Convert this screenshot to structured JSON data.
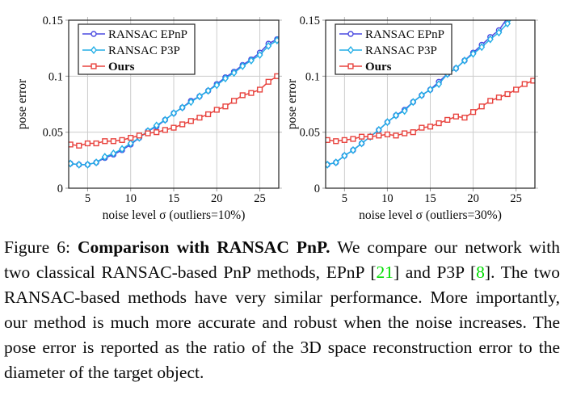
{
  "figure": {
    "caption": {
      "segments": [
        {
          "text": "Figure 6: ",
          "style": "normal"
        },
        {
          "text": "Comparison with RANSAC PnP.",
          "style": "bold"
        },
        {
          "text": " We compare our network with two classical RANSAC-based PnP methods, EPnP [",
          "style": "normal"
        },
        {
          "text": "21",
          "style": "cite"
        },
        {
          "text": "] and P3P [",
          "style": "normal"
        },
        {
          "text": "8",
          "style": "cite"
        },
        {
          "text": "]. The two RANSAC-based methods have very similar performance. More importantly, our method is much more accurate and robust when the noise increases. The pose error is reported as the ratio of the 3D space reconstruction error to the diameter of the target object.",
          "style": "normal"
        }
      ]
    },
    "colors": {
      "epnp_blue": "#4a4ae0",
      "p3p_cyan": "#23aee6",
      "ours_red": "#e8433e",
      "grid_gray": "#cccccc",
      "axis_border": "#222222",
      "citation_green": "#00dd00"
    }
  },
  "chart_data": [
    {
      "type": "line",
      "title": "",
      "xlabel": "noise level σ (outliers=10%)",
      "ylabel": "pose error",
      "xlim": [
        2.8,
        27.2
      ],
      "ylim": [
        0,
        0.15
      ],
      "xticks": [
        5,
        10,
        15,
        20,
        25
      ],
      "xtick_labels": [
        "5",
        "10",
        "15",
        "20",
        "25"
      ],
      "yticks": [
        0,
        0.05,
        0.1,
        0.15
      ],
      "ytick_labels": [
        "0",
        "0.05",
        "0.1",
        "0.15"
      ],
      "grid": true,
      "legend_position": "top-left",
      "x": [
        3,
        4,
        5,
        6,
        7,
        8,
        9,
        10,
        11,
        12,
        13,
        14,
        15,
        16,
        17,
        18,
        19,
        20,
        21,
        22,
        23,
        24,
        25,
        26,
        27
      ],
      "series": [
        {
          "name": "RANSAC EPnP",
          "color": "#4a4ae0",
          "marker": "circle",
          "bold": false,
          "values": [
            0.022,
            0.021,
            0.021,
            0.023,
            0.027,
            0.03,
            0.034,
            0.039,
            0.045,
            0.051,
            0.055,
            0.061,
            0.067,
            0.072,
            0.078,
            0.082,
            0.087,
            0.093,
            0.099,
            0.104,
            0.11,
            0.115,
            0.121,
            0.129,
            0.133
          ]
        },
        {
          "name": "RANSAC P3P",
          "color": "#23aee6",
          "marker": "diamond",
          "bold": false,
          "values": [
            0.022,
            0.021,
            0.021,
            0.023,
            0.028,
            0.031,
            0.035,
            0.04,
            0.045,
            0.051,
            0.056,
            0.061,
            0.067,
            0.072,
            0.077,
            0.082,
            0.087,
            0.092,
            0.098,
            0.103,
            0.109,
            0.114,
            0.119,
            0.127,
            0.132
          ]
        },
        {
          "name": "Ours",
          "color": "#e8433e",
          "marker": "square",
          "bold": true,
          "values": [
            0.039,
            0.038,
            0.04,
            0.04,
            0.042,
            0.042,
            0.043,
            0.045,
            0.047,
            0.049,
            0.05,
            0.052,
            0.054,
            0.057,
            0.06,
            0.063,
            0.066,
            0.07,
            0.073,
            0.078,
            0.083,
            0.085,
            0.088,
            0.095,
            0.1
          ]
        }
      ]
    },
    {
      "type": "line",
      "title": "",
      "xlabel": "noise level σ (outliers=30%)",
      "ylabel": "pose error",
      "xlim": [
        2.8,
        27.2
      ],
      "ylim": [
        0,
        0.15
      ],
      "xticks": [
        5,
        10,
        15,
        20,
        25
      ],
      "xtick_labels": [
        "5",
        "10",
        "15",
        "20",
        "25"
      ],
      "yticks": [
        0,
        0.05,
        0.1,
        0.15
      ],
      "ytick_labels": [
        "0",
        "0.05",
        "0.1",
        "0.15"
      ],
      "grid": true,
      "legend_position": "top-left",
      "x": [
        3,
        4,
        5,
        6,
        7,
        8,
        9,
        10,
        11,
        12,
        13,
        14,
        15,
        16,
        17,
        18,
        19,
        20,
        21,
        22,
        23,
        24,
        25,
        26,
        27
      ],
      "series": [
        {
          "name": "RANSAC EPnP",
          "color": "#4a4ae0",
          "marker": "circle",
          "bold": false,
          "values": [
            0.021,
            0.023,
            0.029,
            0.034,
            0.04,
            0.046,
            0.052,
            0.059,
            0.065,
            0.07,
            0.077,
            0.083,
            0.088,
            0.095,
            0.102,
            0.107,
            0.114,
            0.121,
            0.128,
            0.135,
            0.141,
            0.152,
            null,
            null,
            null
          ]
        },
        {
          "name": "RANSAC P3P",
          "color": "#23aee6",
          "marker": "diamond",
          "bold": false,
          "values": [
            0.021,
            0.023,
            0.029,
            0.034,
            0.04,
            0.046,
            0.052,
            0.059,
            0.065,
            0.069,
            0.077,
            0.083,
            0.088,
            0.093,
            0.102,
            0.107,
            0.114,
            0.12,
            0.126,
            0.133,
            0.139,
            0.147,
            0.155,
            null,
            null
          ]
        },
        {
          "name": "Ours",
          "color": "#e8433e",
          "marker": "square",
          "bold": true,
          "values": [
            0.043,
            0.042,
            0.043,
            0.044,
            0.046,
            0.046,
            0.047,
            0.048,
            0.047,
            0.049,
            0.05,
            0.054,
            0.055,
            0.058,
            0.061,
            0.064,
            0.063,
            0.068,
            0.073,
            0.078,
            0.081,
            0.084,
            0.088,
            0.093,
            0.096
          ]
        }
      ]
    }
  ]
}
